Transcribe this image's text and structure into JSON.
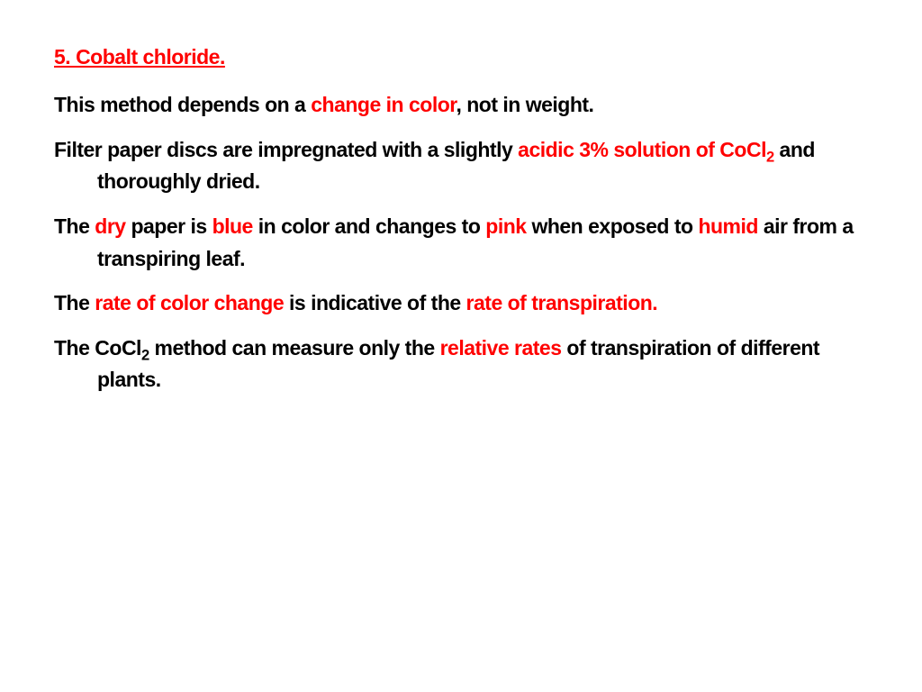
{
  "colors": {
    "red": "#ff0000",
    "black": "#000000",
    "background": "#ffffff"
  },
  "typography": {
    "font_family": "Arial Black / Arial Heavy",
    "heading_fontsize": 23,
    "body_fontsize": 23,
    "font_weight": 900,
    "line_height": 1.55
  },
  "heading": "5. Cobalt chloride.",
  "p1": {
    "t1": "This method depends on a ",
    "t2": "change in color",
    "t3": ", not in weight."
  },
  "p2": {
    "t1": "Filter paper discs are impregnated with a slightly ",
    "t2": "acidic 3% solution of CoCl",
    "t2sub": "2",
    "t3": " and thoroughly dried."
  },
  "p3": {
    "t1": "The ",
    "t2": "dry",
    "t3": " paper is ",
    "t4": "blue",
    "t5": " in color and changes to ",
    "t6": "pink",
    "t7": " when exposed to ",
    "t8": "humid",
    "t9": " air from a transpiring leaf."
  },
  "p4": {
    "t1": "The ",
    "t2": "rate of color change ",
    "t3": "is indicative of the ",
    "t4": "rate of transpiration."
  },
  "p5": {
    "t1": "The CoCl",
    "t1sub": "2",
    "t2": " method can measure only the ",
    "t3": "relative rates ",
    "t4": "of transpiration of different plants."
  }
}
